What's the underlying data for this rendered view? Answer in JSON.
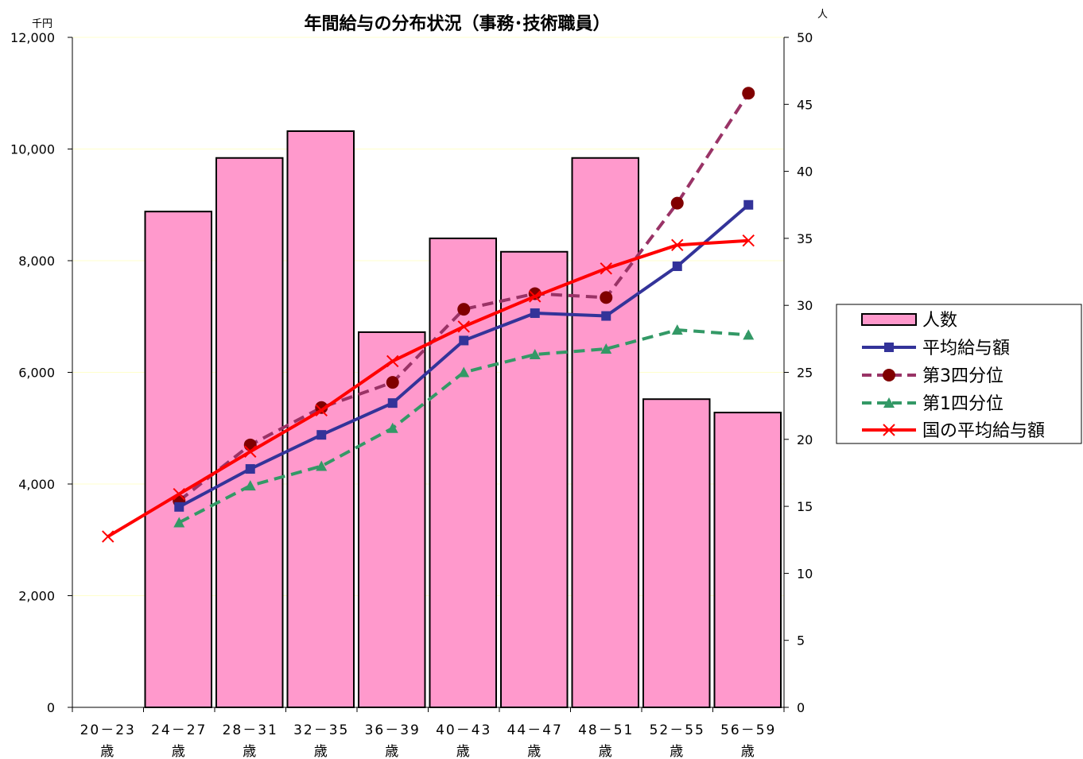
{
  "chart_data": {
    "type": "bar",
    "title": "年間給与の分布状況（事務･技術職員）",
    "left_axis_unit": "千円",
    "right_axis_unit": "人",
    "categories": [
      {
        "range": "20－23",
        "suffix": "歳"
      },
      {
        "range": "24－27",
        "suffix": "歳"
      },
      {
        "range": "28－31",
        "suffix": "歳"
      },
      {
        "range": "32－35",
        "suffix": "歳"
      },
      {
        "range": "36－39",
        "suffix": "歳"
      },
      {
        "range": "40－43",
        "suffix": "歳"
      },
      {
        "range": "44－47",
        "suffix": "歳"
      },
      {
        "range": "48－51",
        "suffix": "歳"
      },
      {
        "range": "52－55",
        "suffix": "歳"
      },
      {
        "range": "56－59",
        "suffix": "歳"
      }
    ],
    "ylim_left": [
      0,
      12000
    ],
    "yticks_left": [
      "0",
      "2,000",
      "4,000",
      "6,000",
      "8,000",
      "10,000",
      "12,000"
    ],
    "ylim_right": [
      0,
      50
    ],
    "yticks_right": [
      "0",
      "5",
      "10",
      "15",
      "20",
      "25",
      "30",
      "35",
      "40",
      "45",
      "50"
    ],
    "grid": true,
    "legend_position": "right",
    "series": [
      {
        "name": "人数",
        "kind": "bar",
        "axis": "right",
        "color": "#ff99cc",
        "values": [
          null,
          37,
          41,
          43,
          28,
          35,
          34,
          41,
          23,
          22
        ]
      },
      {
        "name": "平均給与額",
        "kind": "line",
        "axis": "left",
        "color": "#333399",
        "dash": "solid",
        "marker": "square",
        "values": [
          null,
          3590,
          4270,
          4880,
          5450,
          6570,
          7060,
          7010,
          7900,
          9000
        ]
      },
      {
        "name": "第3四分位",
        "kind": "line",
        "axis": "left",
        "color": "#993366",
        "dash": "dashed",
        "marker": "circle",
        "marker_color": "#800000",
        "values": [
          null,
          3700,
          4700,
          5370,
          5820,
          7130,
          7410,
          7340,
          9030,
          11000
        ]
      },
      {
        "name": "第1四分位",
        "kind": "line",
        "axis": "left",
        "color": "#339966",
        "dash": "dashed",
        "marker": "triangle",
        "values": [
          null,
          3310,
          3970,
          4320,
          5000,
          6000,
          6320,
          6420,
          6760,
          6670
        ]
      },
      {
        "name": "国の平均給与額",
        "kind": "line",
        "axis": "left",
        "color": "#ff0000",
        "dash": "solid",
        "marker": "x",
        "values": [
          3060,
          3820,
          4580,
          5320,
          6200,
          6820,
          7360,
          7860,
          8280,
          8360
        ]
      }
    ]
  }
}
